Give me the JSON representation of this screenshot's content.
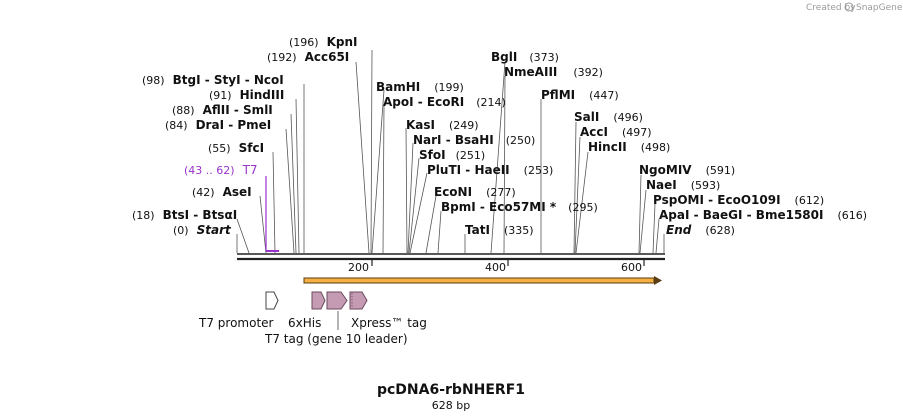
{
  "credit": {
    "text": "Created by",
    "brand": "SnapGene"
  },
  "plasmid": {
    "name": "pcDNA6-rbNHERF1",
    "size_label": "628 bp",
    "length_bp": 628
  },
  "ruler": {
    "ticks": [
      "200",
      "400",
      "600"
    ]
  },
  "sites": [
    {
      "pos": "(196)",
      "name": "KpnI"
    },
    {
      "pos": "(192)",
      "name": "Acc65I"
    },
    {
      "pos": "(98)",
      "name": "BtgI - StyI - NcoI"
    },
    {
      "pos": "(91)",
      "name": "HindIII"
    },
    {
      "pos": "(88)",
      "name": "AflII - SmlI"
    },
    {
      "pos": "(84)",
      "name": "DraI - PmeI"
    },
    {
      "pos": "(55)",
      "name": "SfcI"
    },
    {
      "pos": "(43 .. 62)",
      "name": "T7"
    },
    {
      "pos": "(42)",
      "name": "AseI"
    },
    {
      "pos": "(18)",
      "name": "BtsI - BtsαI"
    },
    {
      "pos": "(0)",
      "name": "Start"
    },
    {
      "pos": "(199)",
      "name": "BamHI"
    },
    {
      "pos": "(214)",
      "name": "ApoI - EcoRI"
    },
    {
      "pos": "(249)",
      "name": "KasI"
    },
    {
      "pos": "(250)",
      "name": "NarI - BsaHI"
    },
    {
      "pos": "(251)",
      "name": "SfoI"
    },
    {
      "pos": "(253)",
      "name": "PluTI - HaeII"
    },
    {
      "pos": "(277)",
      "name": "EcoNI"
    },
    {
      "pos": "(295)",
      "name": "BpmI - Eco57MI *"
    },
    {
      "pos": "(335)",
      "name": "TatI"
    },
    {
      "pos": "(373)",
      "name": "BglI"
    },
    {
      "pos": "(392)",
      "name": "NmeAIII"
    },
    {
      "pos": "(447)",
      "name": "PflMI"
    },
    {
      "pos": "(496)",
      "name": "SalI"
    },
    {
      "pos": "(497)",
      "name": "AccI"
    },
    {
      "pos": "(498)",
      "name": "HincII"
    },
    {
      "pos": "(591)",
      "name": "NgoMIV"
    },
    {
      "pos": "(593)",
      "name": "NaeI"
    },
    {
      "pos": "(612)",
      "name": "PspOMI - EcoO109I"
    },
    {
      "pos": "(616)",
      "name": "ApaI - BaeGI - Bme1580I"
    },
    {
      "pos": "(628)",
      "name": "End"
    }
  ],
  "features": [
    {
      "name": "T7 promoter"
    },
    {
      "name": "6xHis"
    },
    {
      "name": "Xpress™ tag"
    },
    {
      "name": "T7 tag (gene 10 leader)"
    }
  ],
  "colors": {
    "backbone": "#222222",
    "orf": "#f5b041",
    "orf_border": "#5a3d12",
    "tag_fill": "#c59bb3",
    "tag_border": "#6b4a5d",
    "t7_site": "#9933cc",
    "promoter_fill": "#ffffff"
  }
}
